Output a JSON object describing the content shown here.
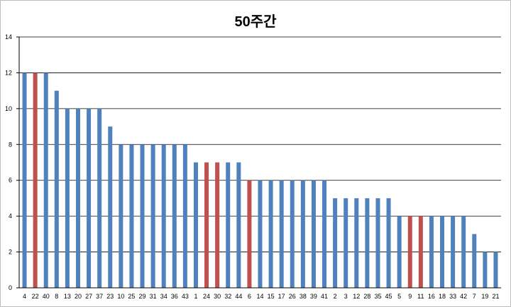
{
  "chart_data": {
    "type": "bar",
    "title": "50주간",
    "xlabel": "",
    "ylabel": "",
    "ylim": [
      0,
      14
    ],
    "yticks": [
      0,
      2,
      4,
      6,
      8,
      10,
      12,
      14
    ],
    "grid": true,
    "legend": "none",
    "categories": [
      "4",
      "22",
      "40",
      "8",
      "13",
      "20",
      "27",
      "37",
      "23",
      "10",
      "25",
      "29",
      "31",
      "34",
      "36",
      "43",
      "1",
      "24",
      "30",
      "32",
      "44",
      "6",
      "14",
      "15",
      "17",
      "26",
      "38",
      "39",
      "41",
      "2",
      "3",
      "12",
      "28",
      "35",
      "45",
      "5",
      "9",
      "11",
      "16",
      "18",
      "33",
      "42",
      "7",
      "19",
      "21"
    ],
    "values": [
      12,
      12,
      12,
      11,
      10,
      10,
      10,
      10,
      9,
      8,
      8,
      8,
      8,
      8,
      8,
      8,
      7,
      7,
      7,
      7,
      7,
      6,
      6,
      6,
      6,
      6,
      6,
      6,
      6,
      5,
      5,
      5,
      5,
      5,
      5,
      4,
      4,
      4,
      4,
      4,
      4,
      4,
      3,
      2,
      2
    ],
    "highlighted": [
      "22",
      "24",
      "30",
      "6",
      "9",
      "11"
    ],
    "colors": {
      "default": "#4f81bd",
      "highlight": "#c0504d",
      "grid": "#000000"
    }
  }
}
